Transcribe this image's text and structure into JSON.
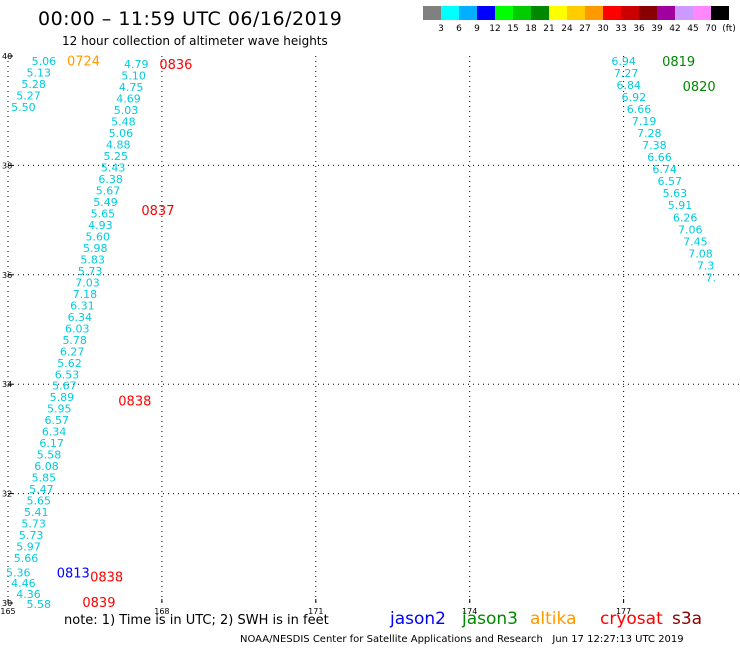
{
  "title": "00:00 – 11:59 UTC 06/16/2019",
  "subtitle": "12 hour collection of altimeter wave heights",
  "scale_legend": {
    "swatches": [
      "#808080",
      "#00ffff",
      "#00b0ff",
      "#0000ff",
      "#00ff00",
      "#00cc00",
      "#008800",
      "#ffff00",
      "#ffcc00",
      "#ff9900",
      "#ff0000",
      "#cc0000",
      "#880000",
      "#a000a0",
      "#cc99ff",
      "#ff88ff",
      "#000000"
    ],
    "labels": [
      "3",
      "6",
      "9",
      "12",
      "15",
      "18",
      "21",
      "24",
      "27",
      "30",
      "33",
      "36",
      "39",
      "42",
      "45",
      "70",
      "(ft)"
    ]
  },
  "axes": {
    "x_ticks": [
      "165",
      "168",
      "171",
      "174",
      "177"
    ],
    "y_ticks": [
      "40",
      "38",
      "36",
      "34",
      "32",
      "30"
    ]
  },
  "colors": {
    "wave": "#00ccdd",
    "cryosat": "#ff0000",
    "jason3": "#008800",
    "altika": "#ff9900",
    "jason2": "#0000ff"
  },
  "pass_times": [
    {
      "text": "0724",
      "lon": 166.15,
      "lat": 39.94,
      "sat": "altika"
    },
    {
      "text": "0836",
      "lon": 167.95,
      "lat": 39.87,
      "sat": "cryosat"
    },
    {
      "text": "0837",
      "lon": 167.6,
      "lat": 37.2,
      "sat": "cryosat"
    },
    {
      "text": "0838",
      "lon": 167.15,
      "lat": 33.72,
      "sat": "cryosat"
    },
    {
      "text": "0838",
      "lon": 166.6,
      "lat": 30.5,
      "sat": "cryosat"
    },
    {
      "text": "0839",
      "lon": 166.45,
      "lat": 30.04,
      "sat": "cryosat"
    },
    {
      "text": "0813",
      "lon": 165.95,
      "lat": 30.58,
      "sat": "jason2"
    },
    {
      "text": "0819",
      "lon": 177.75,
      "lat": 39.93,
      "sat": "jason3"
    },
    {
      "text": "0820",
      "lon": 178.15,
      "lat": 39.47,
      "sat": "jason3"
    }
  ],
  "wave_tracks": [
    {
      "name": "altika-track",
      "points": [
        {
          "lon": 165.7,
          "lat": 39.93,
          "v": "5.06"
        },
        {
          "lon": 165.6,
          "lat": 39.72,
          "v": "5.13"
        },
        {
          "lon": 165.5,
          "lat": 39.51,
          "v": "5.28"
        },
        {
          "lon": 165.4,
          "lat": 39.3,
          "v": "5.27"
        },
        {
          "lon": 165.3,
          "lat": 39.09,
          "v": "5.50"
        }
      ]
    },
    {
      "name": "cryosat-track-north",
      "points": [
        {
          "lon": 167.5,
          "lat": 39.87,
          "v": "4.79"
        },
        {
          "lon": 167.45,
          "lat": 39.66,
          "v": "5.10"
        },
        {
          "lon": 167.4,
          "lat": 39.45,
          "v": "4.75"
        },
        {
          "lon": 167.35,
          "lat": 39.24,
          "v": "4.69"
        },
        {
          "lon": 167.3,
          "lat": 39.03,
          "v": "5.03"
        },
        {
          "lon": 167.25,
          "lat": 38.82,
          "v": "5.48"
        },
        {
          "lon": 167.2,
          "lat": 38.61,
          "v": "5.06"
        },
        {
          "lon": 167.15,
          "lat": 38.4,
          "v": "4.88"
        },
        {
          "lon": 167.1,
          "lat": 38.19,
          "v": "5.25"
        },
        {
          "lon": 167.05,
          "lat": 37.98,
          "v": "5.43"
        },
        {
          "lon": 167.0,
          "lat": 37.77,
          "v": "6.38"
        },
        {
          "lon": 166.95,
          "lat": 37.56,
          "v": "5.67"
        },
        {
          "lon": 166.9,
          "lat": 37.35,
          "v": "5.49"
        },
        {
          "lon": 166.85,
          "lat": 37.14,
          "v": "5.65"
        },
        {
          "lon": 166.8,
          "lat": 36.93,
          "v": "4.93"
        },
        {
          "lon": 166.75,
          "lat": 36.72,
          "v": "5.60"
        },
        {
          "lon": 166.7,
          "lat": 36.51,
          "v": "5.98"
        },
        {
          "lon": 166.65,
          "lat": 36.3,
          "v": "5.83"
        },
        {
          "lon": 166.6,
          "lat": 36.09,
          "v": "5.73"
        },
        {
          "lon": 166.55,
          "lat": 35.88,
          "v": "7.03"
        },
        {
          "lon": 166.5,
          "lat": 35.67,
          "v": "7.18"
        },
        {
          "lon": 166.45,
          "lat": 35.46,
          "v": "6.31"
        },
        {
          "lon": 166.4,
          "lat": 35.25,
          "v": "6.34"
        },
        {
          "lon": 166.35,
          "lat": 35.04,
          "v": "6.03"
        },
        {
          "lon": 166.3,
          "lat": 34.83,
          "v": "5.78"
        },
        {
          "lon": 166.25,
          "lat": 34.62,
          "v": "6.27"
        },
        {
          "lon": 166.2,
          "lat": 34.41,
          "v": "5.62"
        },
        {
          "lon": 166.15,
          "lat": 34.2,
          "v": "6.53"
        },
        {
          "lon": 166.1,
          "lat": 33.99,
          "v": "5.67"
        },
        {
          "lon": 166.05,
          "lat": 33.78,
          "v": "5.89"
        },
        {
          "lon": 166.0,
          "lat": 33.57,
          "v": "5.95"
        },
        {
          "lon": 165.95,
          "lat": 33.36,
          "v": "6.57"
        },
        {
          "lon": 165.9,
          "lat": 33.15,
          "v": "6.34"
        },
        {
          "lon": 165.85,
          "lat": 32.94,
          "v": "6.17"
        },
        {
          "lon": 165.8,
          "lat": 32.73,
          "v": "5.58"
        },
        {
          "lon": 165.75,
          "lat": 32.52,
          "v": "6.08"
        },
        {
          "lon": 165.7,
          "lat": 32.31,
          "v": "5.85"
        },
        {
          "lon": 165.65,
          "lat": 32.1,
          "v": "5.47"
        },
        {
          "lon": 165.6,
          "lat": 31.89,
          "v": "5.65"
        },
        {
          "lon": 165.55,
          "lat": 31.68,
          "v": "5.41"
        },
        {
          "lon": 165.5,
          "lat": 31.47,
          "v": "5.73"
        },
        {
          "lon": 165.45,
          "lat": 31.26,
          "v": "5.73"
        },
        {
          "lon": 165.4,
          "lat": 31.05,
          "v": "5.97"
        },
        {
          "lon": 165.35,
          "lat": 30.84,
          "v": "5.66"
        }
      ]
    },
    {
      "name": "jason2-track",
      "points": [
        {
          "lon": 165.2,
          "lat": 30.58,
          "v": "5.36"
        },
        {
          "lon": 165.3,
          "lat": 30.38,
          "v": "4.46"
        },
        {
          "lon": 165.4,
          "lat": 30.18,
          "v": "4.36"
        },
        {
          "lon": 165.6,
          "lat": 30.0,
          "v": "5.58"
        }
      ]
    },
    {
      "name": "jason3-track",
      "points": [
        {
          "lon": 177.0,
          "lat": 39.93,
          "v": "6.94"
        },
        {
          "lon": 177.05,
          "lat": 39.71,
          "v": "7.27"
        },
        {
          "lon": 177.1,
          "lat": 39.49,
          "v": "6.84"
        },
        {
          "lon": 177.2,
          "lat": 39.27,
          "v": "6.92"
        },
        {
          "lon": 177.3,
          "lat": 39.05,
          "v": "6.66"
        },
        {
          "lon": 177.4,
          "lat": 38.83,
          "v": "7.19"
        },
        {
          "lon": 177.5,
          "lat": 38.61,
          "v": "7.28"
        },
        {
          "lon": 177.6,
          "lat": 38.39,
          "v": "7.38"
        },
        {
          "lon": 177.7,
          "lat": 38.17,
          "v": "6.66"
        },
        {
          "lon": 177.8,
          "lat": 37.95,
          "v": "6.74"
        },
        {
          "lon": 177.9,
          "lat": 37.73,
          "v": "6.57"
        },
        {
          "lon": 178.0,
          "lat": 37.51,
          "v": "5.63"
        },
        {
          "lon": 178.1,
          "lat": 37.29,
          "v": "5.91"
        },
        {
          "lon": 178.2,
          "lat": 37.07,
          "v": "6.26"
        },
        {
          "lon": 178.3,
          "lat": 36.85,
          "v": "7.06"
        },
        {
          "lon": 178.4,
          "lat": 36.63,
          "v": "7.45"
        },
        {
          "lon": 178.5,
          "lat": 36.41,
          "v": "7.08"
        },
        {
          "lon": 178.6,
          "lat": 36.19,
          "v": "7.3"
        },
        {
          "lon": 178.7,
          "lat": 35.97,
          "v": "7."
        }
      ]
    }
  ],
  "footnote": "note: 1) Time is in UTC; 2) SWH is in feet",
  "satellites": [
    {
      "name": "jason2",
      "key": "jason2"
    },
    {
      "name": "jason3",
      "key": "jason3"
    },
    {
      "name": "altika",
      "key": "altika"
    },
    {
      "name": "cryosat",
      "key": "cryosat"
    },
    {
      "name": "s3a",
      "key": "s3a"
    }
  ],
  "credit": "NOAA/NESDIS Center for Satellite Applications and Research   Jun 17 12:27:13 UTC 2019"
}
